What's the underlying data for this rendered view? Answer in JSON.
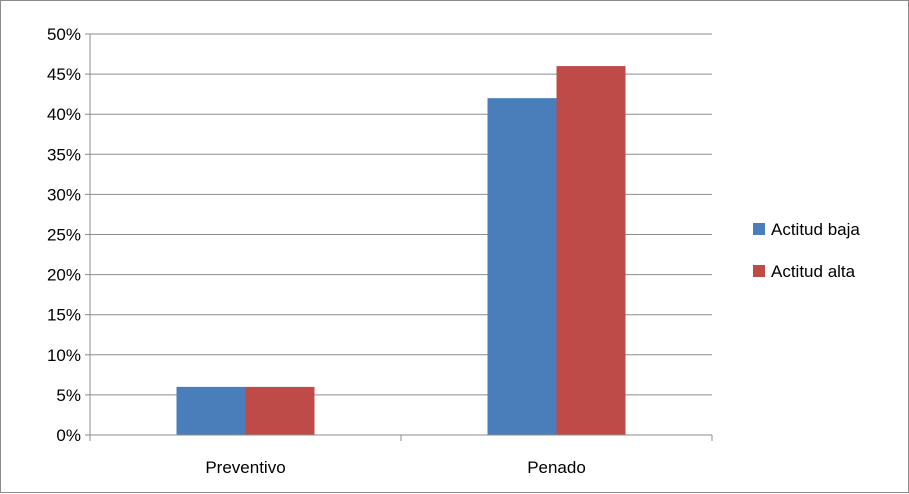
{
  "chart_data": {
    "type": "bar",
    "categories": [
      "Preventivo",
      "Penado"
    ],
    "series": [
      {
        "name": "Actitud baja",
        "values": [
          6,
          42
        ],
        "color": "#4a7ebb"
      },
      {
        "name": "Actitud alta",
        "values": [
          6,
          46
        ],
        "color": "#be4b48"
      }
    ],
    "ylim": [
      0,
      50
    ],
    "yticks": [
      0,
      5,
      10,
      15,
      20,
      25,
      30,
      35,
      40,
      45,
      50
    ],
    "ytick_labels": [
      "0%",
      "5%",
      "10%",
      "15%",
      "20%",
      "25%",
      "30%",
      "35%",
      "40%",
      "45%",
      "50%"
    ],
    "title": "",
    "xlabel": "",
    "ylabel": "",
    "grid": true,
    "legend_position": "right"
  }
}
